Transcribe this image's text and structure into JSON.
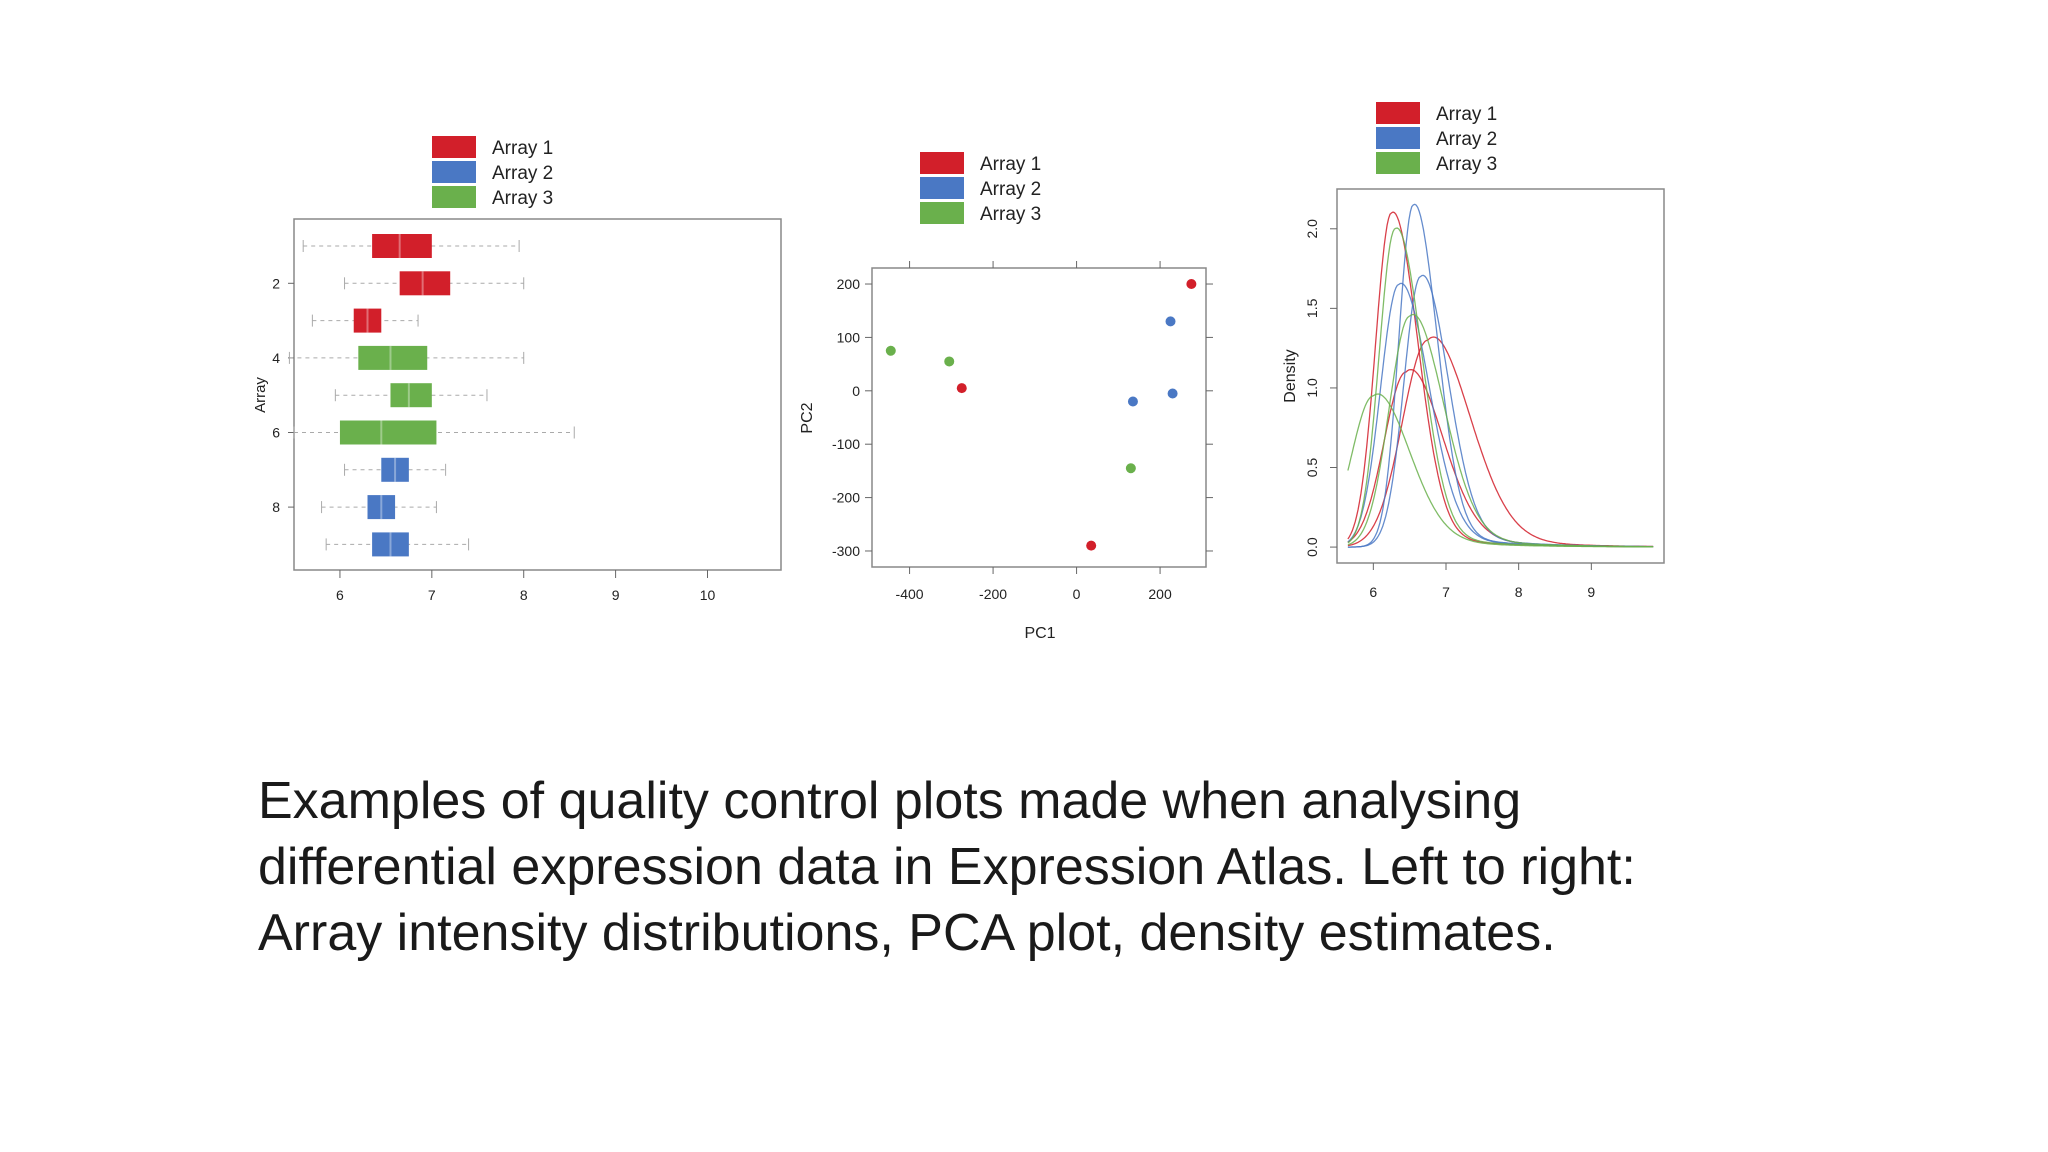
{
  "colors": {
    "array1": "#d21f2a",
    "array2": "#4a78c4",
    "array3": "#6ab04c"
  },
  "chart_data": [
    {
      "type": "boxplot",
      "orientation": "horizontal",
      "legend": [
        "Array 1",
        "Array 2",
        "Array 3"
      ],
      "ylabel": "Array",
      "xlim": [
        5.5,
        10.8
      ],
      "xticks": [
        "6",
        "7",
        "8",
        "9",
        "10"
      ],
      "yticks": [
        "2",
        "4",
        "6",
        "8"
      ],
      "series": [
        {
          "name": "Array 1",
          "boxes": [
            {
              "row": 1,
              "whisker_low": 5.6,
              "q1": 6.35,
              "median": 6.65,
              "q3": 7.0,
              "whisker_high": 7.95
            },
            {
              "row": 2,
              "whisker_low": 6.05,
              "q1": 6.65,
              "median": 6.9,
              "q3": 7.2,
              "whisker_high": 8.0
            },
            {
              "row": 3,
              "whisker_low": 5.7,
              "q1": 6.15,
              "median": 6.3,
              "q3": 6.45,
              "whisker_high": 6.85
            }
          ]
        },
        {
          "name": "Array 3",
          "boxes": [
            {
              "row": 4,
              "whisker_low": 5.45,
              "q1": 6.2,
              "median": 6.55,
              "q3": 6.95,
              "whisker_high": 8.0
            },
            {
              "row": 5,
              "whisker_low": 5.95,
              "q1": 6.55,
              "median": 6.75,
              "q3": 7.0,
              "whisker_high": 7.6
            },
            {
              "row": 6,
              "whisker_low": 5.5,
              "q1": 6.0,
              "median": 6.45,
              "q3": 7.05,
              "whisker_high": 8.55
            }
          ]
        },
        {
          "name": "Array 2",
          "boxes": [
            {
              "row": 7,
              "whisker_low": 6.05,
              "q1": 6.45,
              "median": 6.6,
              "q3": 6.75,
              "whisker_high": 7.15
            },
            {
              "row": 8,
              "whisker_low": 5.8,
              "q1": 6.3,
              "median": 6.45,
              "q3": 6.6,
              "whisker_high": 7.05
            },
            {
              "row": 9,
              "whisker_low": 5.85,
              "q1": 6.35,
              "median": 6.55,
              "q3": 6.75,
              "whisker_high": 7.4
            }
          ]
        }
      ]
    },
    {
      "type": "scatter",
      "legend": [
        "Array 1",
        "Array 2",
        "Array 3"
      ],
      "xlabel": "PC1",
      "ylabel": "PC2",
      "xlim": [
        -490,
        310
      ],
      "ylim": [
        -330,
        230
      ],
      "xticks": [
        "-400",
        "-200",
        "0",
        "200"
      ],
      "yticks": [
        "200",
        "100",
        "0",
        "-100",
        "-200",
        "-300"
      ],
      "series": [
        {
          "name": "Array 1",
          "points": [
            {
              "x": 275,
              "y": 200
            },
            {
              "x": -275,
              "y": 5
            },
            {
              "x": 35,
              "y": -290
            }
          ]
        },
        {
          "name": "Array 2",
          "points": [
            {
              "x": 225,
              "y": 130
            },
            {
              "x": 135,
              "y": -20
            },
            {
              "x": 230,
              "y": -5
            }
          ]
        },
        {
          "name": "Array 3",
          "points": [
            {
              "x": -445,
              "y": 75
            },
            {
              "x": -305,
              "y": 55
            },
            {
              "x": 130,
              "y": -145
            }
          ]
        }
      ]
    },
    {
      "type": "line",
      "legend": [
        "Array 1",
        "Array 2",
        "Array 3"
      ],
      "ylabel": "Density",
      "xlim": [
        5.5,
        10.0
      ],
      "ylim": [
        -0.1,
        2.25
      ],
      "xticks": [
        "6",
        "7",
        "8",
        "9"
      ],
      "yticks": [
        "0.0",
        "0.5",
        "1.0",
        "1.5",
        "2.0"
      ],
      "series": [
        {
          "name": "Array 1",
          "curves": [
            {
              "peak_x": 6.25,
              "peak_y": 2.1,
              "spread": 0.22,
              "tail": 0.9
            },
            {
              "peak_x": 6.45,
              "peak_y": 1.1,
              "spread": 0.3,
              "tail": 1.0
            },
            {
              "peak_x": 6.75,
              "peak_y": 1.3,
              "spread": 0.35,
              "tail": 1.1
            }
          ]
        },
        {
          "name": "Array 2",
          "curves": [
            {
              "peak_x": 6.55,
              "peak_y": 2.15,
              "spread": 0.2,
              "tail": 0.9
            },
            {
              "peak_x": 6.35,
              "peak_y": 1.65,
              "spread": 0.25,
              "tail": 0.9
            },
            {
              "peak_x": 6.65,
              "peak_y": 1.7,
              "spread": 0.23,
              "tail": 1.0
            }
          ]
        },
        {
          "name": "Array 3",
          "curves": [
            {
              "peak_x": 6.3,
              "peak_y": 2.0,
              "spread": 0.22,
              "tail": 0.9
            },
            {
              "peak_x": 6.0,
              "peak_y": 0.95,
              "spread": 0.3,
              "tail": 0.8
            },
            {
              "peak_x": 6.5,
              "peak_y": 1.45,
              "spread": 0.28,
              "tail": 1.0
            }
          ]
        }
      ]
    }
  ],
  "caption": [
    "Examples of quality control plots made when analysing",
    "differential expression data in Expression Atlas. Left to right:",
    "Array intensity distributions, PCA plot, density estimates."
  ]
}
